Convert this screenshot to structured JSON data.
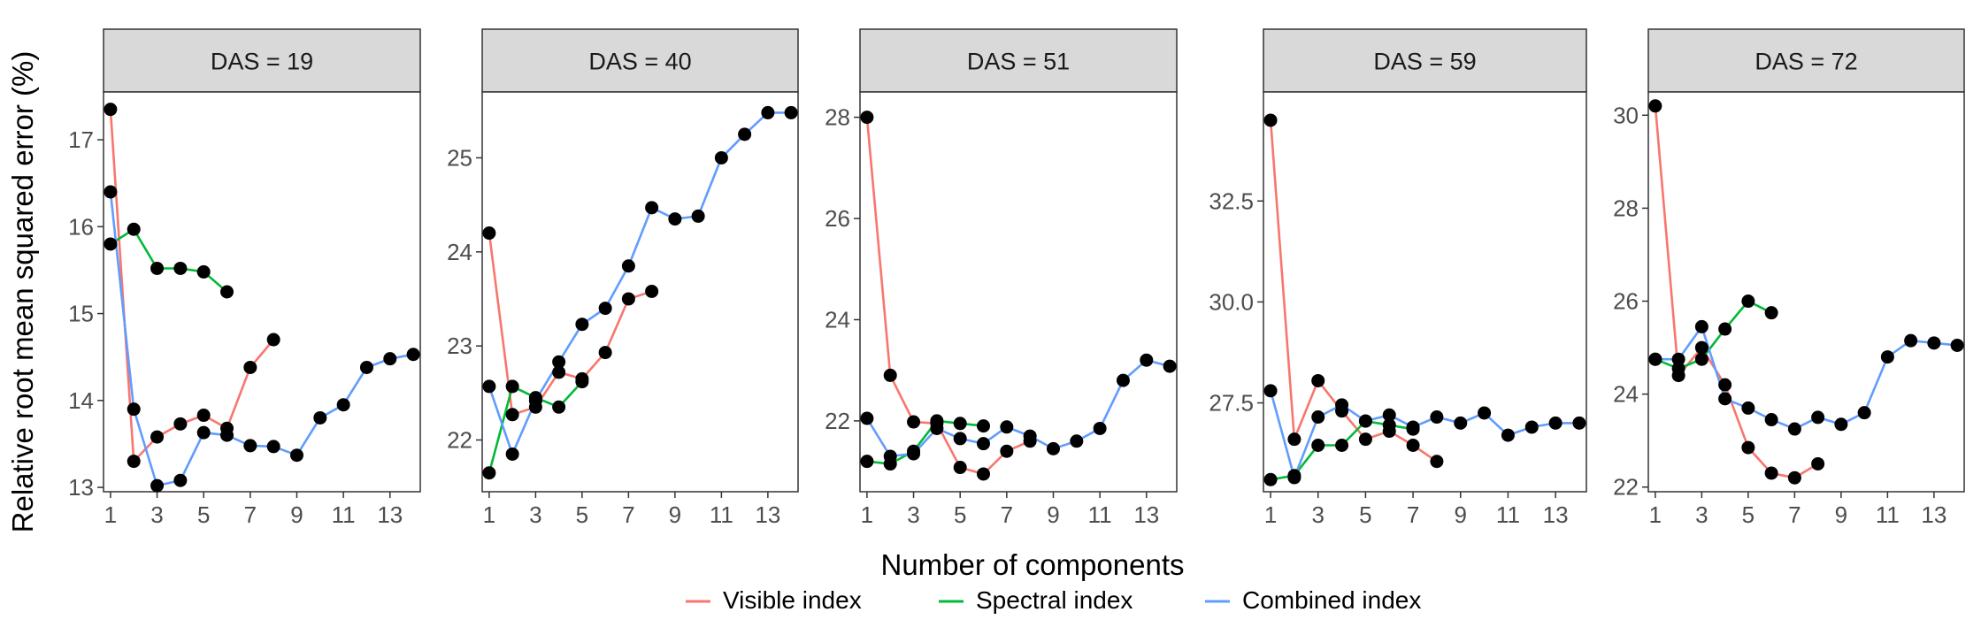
{
  "chart_data": {
    "type": "line",
    "ylabel": "Relative root mean squared error (%)",
    "xlabel": "Number of components",
    "x_ticks": [
      1,
      3,
      5,
      7,
      9,
      11,
      13
    ],
    "x_range": [
      0.7,
      14.3
    ],
    "legend": {
      "position": "bottom",
      "entries": [
        {
          "name": "Visible index",
          "color": "#F8766D"
        },
        {
          "name": "Spectral index",
          "color": "#00BA38"
        },
        {
          "name": "Combined index",
          "color": "#619CFF"
        }
      ]
    },
    "panels": [
      {
        "title": "DAS = 19",
        "ylim": [
          12.95,
          17.55
        ],
        "y_ticks": [
          "13",
          "14",
          "15",
          "16",
          "17"
        ],
        "series": [
          {
            "name": "Visible index",
            "x": [
              1,
              2,
              3,
              4,
              5,
              6,
              7,
              8
            ],
            "y": [
              17.35,
              13.3,
              13.58,
              13.73,
              13.83,
              13.68,
              14.38,
              14.7
            ]
          },
          {
            "name": "Spectral index",
            "x": [
              1,
              2,
              3,
              4,
              5,
              6
            ],
            "y": [
              15.8,
              15.97,
              15.52,
              15.52,
              15.48,
              15.25
            ]
          },
          {
            "name": "Combined index",
            "x": [
              1,
              2,
              3,
              4,
              5,
              6,
              7,
              8,
              9,
              10,
              11,
              12,
              13,
              14
            ],
            "y": [
              16.4,
              13.9,
              13.02,
              13.08,
              13.63,
              13.6,
              13.48,
              13.47,
              13.37,
              13.8,
              13.95,
              14.38,
              14.48,
              14.53
            ]
          }
        ]
      },
      {
        "title": "DAS = 40",
        "ylim": [
          21.45,
          25.7
        ],
        "y_ticks": [
          "22",
          "23",
          "24",
          "25"
        ],
        "series": [
          {
            "name": "Visible index",
            "x": [
              1,
              2,
              3,
              4,
              5,
              6,
              7,
              8
            ],
            "y": [
              24.2,
              22.27,
              22.35,
              22.72,
              22.65,
              22.93,
              23.5,
              23.58
            ]
          },
          {
            "name": "Spectral index",
            "x": [
              1,
              2,
              3,
              4,
              5
            ],
            "y": [
              21.65,
              22.57,
              22.45,
              22.35,
              22.62
            ]
          },
          {
            "name": "Combined index",
            "x": [
              1,
              2,
              3,
              4,
              5,
              6,
              7,
              8,
              9,
              10,
              11,
              12,
              13,
              14
            ],
            "y": [
              22.57,
              21.85,
              22.42,
              22.83,
              23.23,
              23.4,
              23.85,
              24.47,
              24.35,
              24.38,
              25.0,
              25.25,
              25.48,
              25.48
            ]
          }
        ]
      },
      {
        "title": "DAS = 51",
        "ylim": [
          20.6,
          28.5
        ],
        "y_ticks": [
          "22",
          "24",
          "26",
          "28"
        ],
        "series": [
          {
            "name": "Visible index",
            "x": [
              1,
              2,
              3,
              4,
              5,
              6,
              7,
              8
            ],
            "y": [
              28.0,
              22.9,
              21.98,
              21.95,
              21.08,
              20.95,
              21.4,
              21.6
            ]
          },
          {
            "name": "Spectral index",
            "x": [
              1,
              2,
              3,
              4,
              5,
              6
            ],
            "y": [
              21.2,
              21.15,
              21.4,
              22.0,
              21.95,
              21.9
            ]
          },
          {
            "name": "Combined index",
            "x": [
              1,
              2,
              3,
              4,
              5,
              6,
              7,
              8,
              9,
              10,
              11,
              12,
              13,
              14
            ],
            "y": [
              22.05,
              21.3,
              21.35,
              21.85,
              21.65,
              21.55,
              21.88,
              21.7,
              21.45,
              21.6,
              21.85,
              22.8,
              23.2,
              23.08
            ]
          }
        ]
      },
      {
        "title": "DAS = 59",
        "ylim": [
          25.3,
          35.2
        ],
        "y_ticks": [
          "27.5",
          "30.0",
          "32.5"
        ],
        "series": [
          {
            "name": "Visible index",
            "x": [
              1,
              2,
              3,
              4,
              5,
              6,
              7,
              8
            ],
            "y": [
              34.5,
              26.6,
              28.05,
              27.3,
              26.6,
              26.8,
              26.45,
              26.05
            ]
          },
          {
            "name": "Spectral index",
            "x": [
              1,
              2,
              3,
              4,
              5,
              6,
              7
            ],
            "y": [
              25.6,
              25.7,
              26.45,
              26.45,
              27.05,
              26.95,
              26.85
            ]
          },
          {
            "name": "Combined index",
            "x": [
              1,
              2,
              3,
              4,
              5,
              6,
              7,
              8,
              9,
              10,
              11,
              12,
              13,
              14
            ],
            "y": [
              27.8,
              25.65,
              27.15,
              27.45,
              27.05,
              27.2,
              26.9,
              27.15,
              27.0,
              27.25,
              26.7,
              26.9,
              27.0,
              27.0
            ]
          }
        ]
      },
      {
        "title": "DAS = 72",
        "ylim": [
          21.9,
          30.5
        ],
        "y_ticks": [
          "22",
          "24",
          "26",
          "28",
          "30"
        ],
        "series": [
          {
            "name": "Visible index",
            "x": [
              1,
              2,
              3,
              4,
              5,
              6,
              7,
              8
            ],
            "y": [
              30.2,
              24.4,
              25.0,
              24.2,
              22.85,
              22.3,
              22.2,
              22.5
            ]
          },
          {
            "name": "Spectral index",
            "x": [
              1,
              2,
              3,
              4,
              5,
              6
            ],
            "y": [
              24.75,
              24.55,
              24.75,
              25.4,
              26.0,
              25.75
            ]
          },
          {
            "name": "Combined index",
            "x": [
              1,
              2,
              3,
              4,
              5,
              6,
              7,
              8,
              9,
              10,
              11,
              12,
              13,
              14
            ],
            "y": [
              24.75,
              24.75,
              25.45,
              23.9,
              23.7,
              23.45,
              23.25,
              23.5,
              23.35,
              23.6,
              24.8,
              25.15,
              25.1,
              25.05
            ]
          }
        ]
      }
    ]
  }
}
